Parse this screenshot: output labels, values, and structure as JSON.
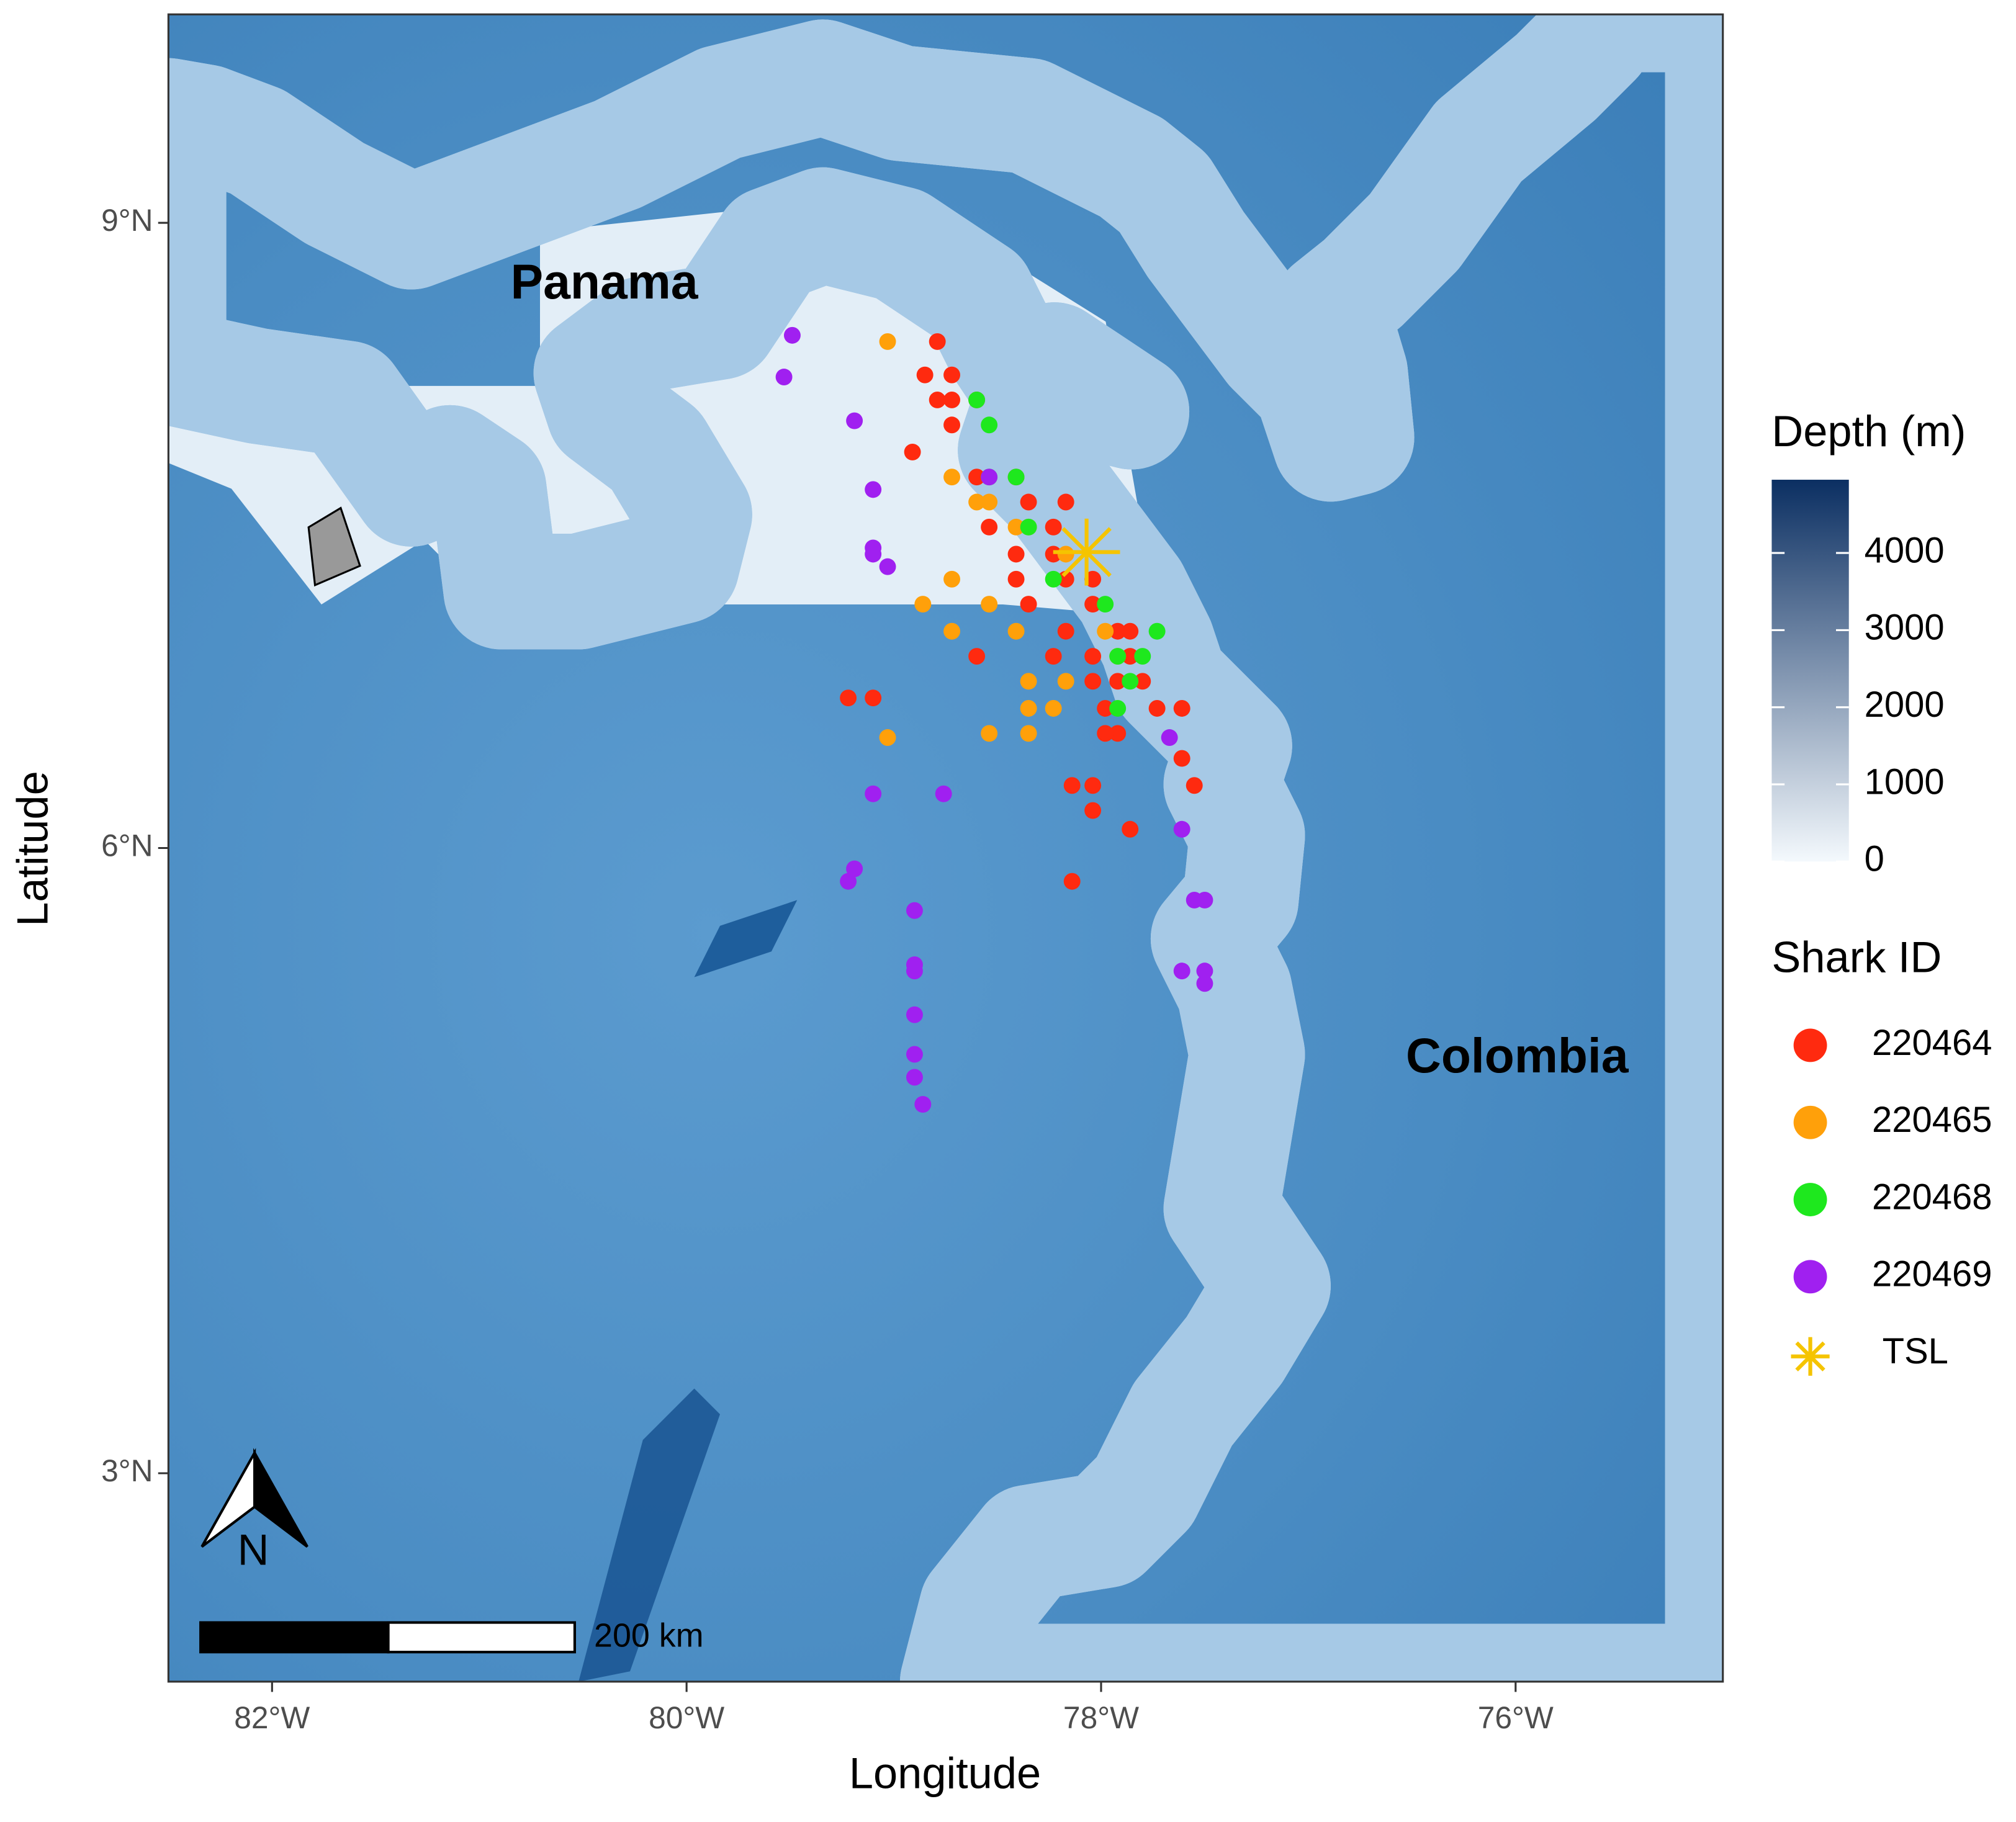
{
  "chart_data": {
    "type": "scatter",
    "xlabel": "Longitude",
    "ylabel": "Latitude",
    "xlim": [
      -82.5,
      -75.0
    ],
    "ylim": [
      2.0,
      10.0
    ],
    "xticks": [
      {
        "value": -82,
        "label": "82°W"
      },
      {
        "value": -80,
        "label": "80°W"
      },
      {
        "value": -78,
        "label": "78°W"
      },
      {
        "value": -76,
        "label": "76°W"
      }
    ],
    "yticks": [
      {
        "value": 3,
        "label": "3°N"
      },
      {
        "value": 6,
        "label": "6°N"
      },
      {
        "value": 9,
        "label": "9°N"
      }
    ],
    "countries": [
      "Panama",
      "Colombia"
    ],
    "scale_bar": "200 km",
    "north_arrow": "N",
    "colorbar": {
      "title": "Depth (m)",
      "lim": [
        0,
        4950
      ],
      "ticks": [
        0,
        1000,
        2000,
        3000,
        4000
      ],
      "colors": [
        "#f4f9fd",
        "#0b2f62"
      ]
    },
    "legend_title": "Shark ID",
    "series": [
      {
        "name": "220464",
        "color": "#ff2a0f",
        "x": [
          -78.79,
          -78.72,
          -78.79,
          -78.6,
          -78.72,
          -78.91,
          -78.6,
          -78.41,
          -78.35,
          -78.23,
          -78.23,
          -78.41,
          -78.17,
          -78.04,
          -78.35,
          -78.04,
          -77.92,
          -78.17,
          -78.23,
          -78.04,
          -77.86,
          -77.92,
          -78.04,
          -77.8,
          -77.98,
          -77.73,
          -77.61,
          -77.92,
          -77.98,
          -77.61,
          -77.55,
          -78.14,
          -78.04,
          -78.04,
          -77.86,
          -78.14,
          -79.22,
          -79.1,
          -78.6,
          -78.41,
          -77.86,
          -78.54,
          -78.17,
          -78.72,
          -78.85
        ],
        "y": [
          8.43,
          8.27,
          8.15,
          8.15,
          8.03,
          7.9,
          7.78,
          7.78,
          7.66,
          7.54,
          7.41,
          7.29,
          7.29,
          7.29,
          7.17,
          7.17,
          7.04,
          7.04,
          6.92,
          6.92,
          6.92,
          6.8,
          6.8,
          6.8,
          6.67,
          6.67,
          6.67,
          6.55,
          6.55,
          6.43,
          6.3,
          6.3,
          6.3,
          6.18,
          6.09,
          5.84,
          6.72,
          6.72,
          6.92,
          7.41,
          7.04,
          7.54,
          7.66,
          8.15,
          8.27
        ]
      },
      {
        "name": "220465",
        "color": "#ffa00a",
        "x": [
          -79.03,
          -78.72,
          -78.54,
          -78.35,
          -78.17,
          -78.72,
          -78.86,
          -78.72,
          -78.54,
          -78.41,
          -78.35,
          -78.17,
          -78.35,
          -78.54,
          -78.35,
          -79.03,
          -77.98,
          -78.6,
          -78.41,
          -78.23,
          -77.92
        ],
        "y": [
          8.43,
          7.78,
          7.66,
          7.54,
          7.41,
          7.29,
          7.17,
          7.04,
          7.17,
          7.04,
          6.8,
          6.8,
          6.67,
          6.55,
          6.55,
          6.53,
          7.04,
          7.66,
          7.54,
          6.67,
          6.92
        ]
      },
      {
        "name": "220468",
        "color": "#1ee81e",
        "x": [
          -78.6,
          -78.54,
          -78.41,
          -78.35,
          -78.23,
          -77.98,
          -77.92,
          -77.86,
          -77.92,
          -77.8,
          -78.54,
          -77.73
        ],
        "y": [
          8.15,
          8.03,
          7.78,
          7.54,
          7.29,
          7.17,
          6.92,
          6.8,
          6.67,
          6.92,
          7.78,
          7.04
        ]
      },
      {
        "name": "220469",
        "color": "#a020f0",
        "x": [
          -79.49,
          -79.53,
          -79.19,
          -79.1,
          -79.1,
          -79.03,
          -79.1,
          -78.76,
          -79.1,
          -79.19,
          -79.22,
          -78.9,
          -78.9,
          -78.9,
          -78.9,
          -78.9,
          -78.9,
          -78.86,
          -77.61,
          -77.55,
          -77.5,
          -77.61,
          -77.5,
          -77.5,
          -77.67,
          -78.54
        ],
        "y": [
          8.46,
          8.26,
          8.05,
          7.72,
          7.41,
          7.35,
          7.44,
          6.26,
          6.26,
          5.9,
          5.84,
          5.7,
          5.44,
          5.41,
          5.2,
          5.01,
          4.9,
          4.77,
          6.09,
          5.75,
          5.75,
          5.41,
          5.41,
          5.35,
          6.53,
          7.78
        ]
      },
      {
        "name": "TSL",
        "color": "#f5c400",
        "marker": "asterisk",
        "x": [
          -78.07
        ],
        "y": [
          7.42
        ]
      }
    ]
  }
}
